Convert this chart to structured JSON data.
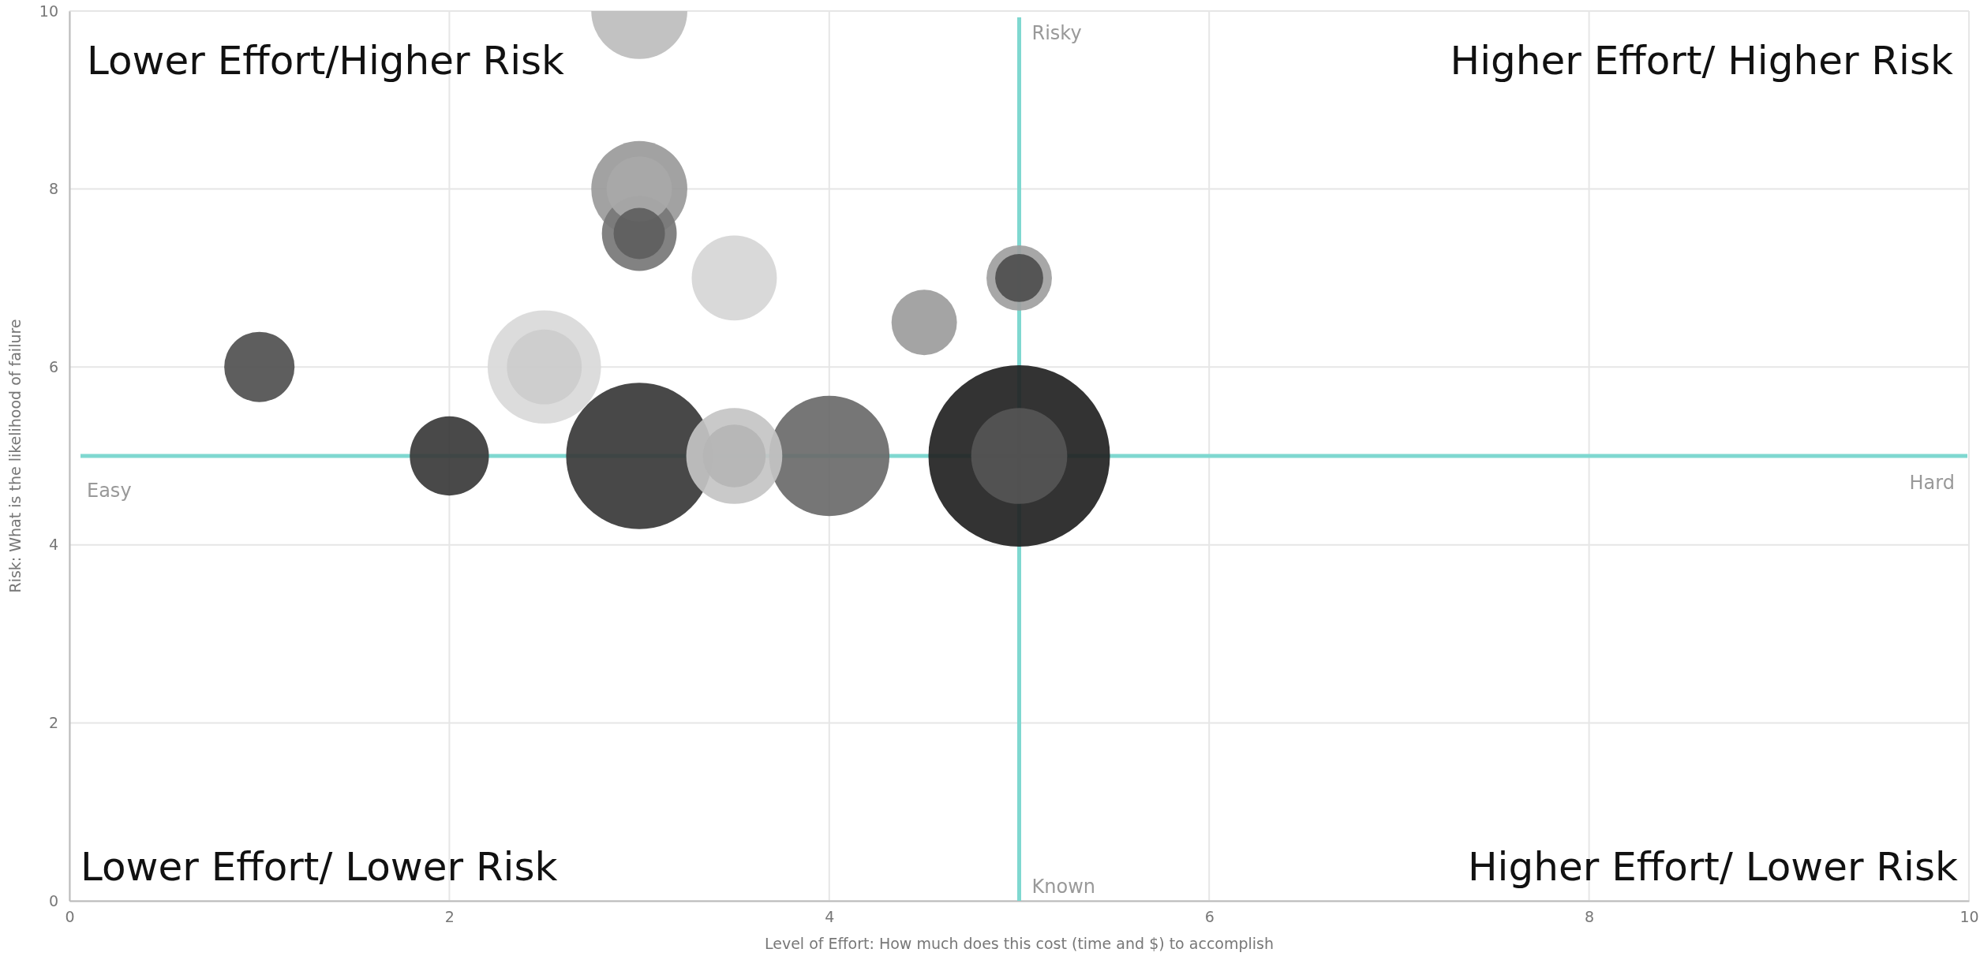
{
  "chart_data": {
    "type": "bubble",
    "xlabel": "Level of Effort: How much does this cost (time and $) to accomplish",
    "ylabel": "Risk: What is the likelihood of failure",
    "xlim": [
      0,
      10
    ],
    "ylim": [
      0,
      10
    ],
    "xticks": [
      0,
      2,
      4,
      6,
      8,
      10
    ],
    "yticks": [
      0,
      2,
      4,
      6,
      8,
      10
    ],
    "grid": true,
    "marker": "circle",
    "series": [
      {
        "x": [
          5,
          3,
          4,
          2.5,
          3.5,
          3,
          3,
          3.5,
          2,
          1,
          3,
          4.5,
          5,
          5,
          3.5,
          2.5,
          3,
          3,
          5
        ],
        "values": [
          5,
          5,
          5,
          6,
          5,
          10,
          8,
          7,
          5,
          6,
          7.5,
          6.5,
          7,
          5,
          5,
          6,
          8,
          7.5,
          7
        ],
        "sizes": [
          1,
          0.65,
          0.44,
          0.39,
          0.28,
          0.28,
          0.28,
          0.22,
          0.19,
          0.15,
          0.17,
          0.13,
          0.13,
          0.28,
          0.12,
          0.17,
          0.13,
          0.08,
          0.07
        ],
        "colors": [
          "#222222",
          "#383838",
          "#6a6a6a",
          "#d9d9d9",
          "#c4c4c4",
          "#bdbdbd",
          "#9a9a9a",
          "#d6d6d6",
          "#3a3a3a",
          "#505050",
          "#777777",
          "#9c9c9c",
          "#a0a0a0",
          "#555555",
          "#b5b5b5",
          "#cccccc",
          "#a8a8a8",
          "#5e5e5e",
          "#4e4e4e"
        ]
      }
    ],
    "ref_lines": [
      {
        "axis": "x",
        "value": 5,
        "color": "#7fd8d0"
      },
      {
        "axis": "y",
        "value": 5,
        "color": "#7fd8d0"
      }
    ],
    "annotations": [
      "Risky",
      "Known",
      "Easy",
      "Hard",
      "Lower Effort/Higher Risk",
      "Higher Effort/ Higher Risk",
      "Lower Effort/ Lower Risk",
      "Higher Effort/ Lower Risk"
    ]
  }
}
